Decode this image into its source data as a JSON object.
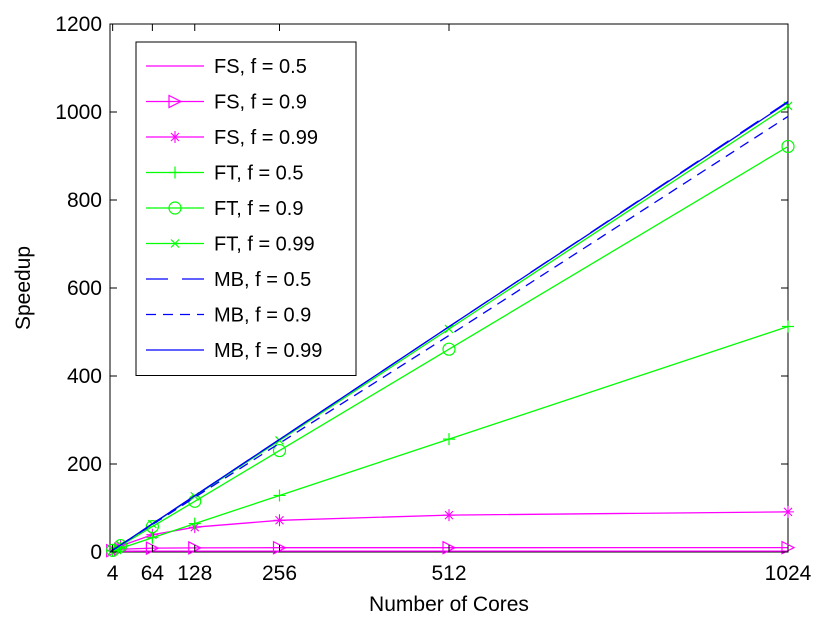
{
  "chart_data": {
    "type": "line",
    "title": "",
    "xlabel": "Number of Cores",
    "ylabel": "Speedup",
    "xlim": [
      0,
      1024
    ],
    "ylim": [
      0,
      1200
    ],
    "xticks": [
      4,
      64,
      128,
      256,
      512,
      1024
    ],
    "xtick_labels": [
      "4",
      "64",
      "128",
      "256",
      "512",
      "1024"
    ],
    "yticks": [
      0,
      200,
      400,
      600,
      800,
      1000,
      1200
    ],
    "ytick_labels": [
      "0",
      "200",
      "400",
      "600",
      "800",
      "1000",
      "1200"
    ],
    "grid": false,
    "legend_position": "top-left",
    "x": [
      1,
      4,
      16,
      64,
      128,
      256,
      512,
      1024
    ],
    "series": [
      {
        "name": "FS, f = 0.5",
        "color": "#ff00ff",
        "dash": "solid",
        "marker": "none",
        "values": [
          1,
          1.6,
          1.9,
          2.0,
          2.0,
          2.0,
          2.0,
          2.0
        ]
      },
      {
        "name": "FS, f = 0.9",
        "color": "#ff00ff",
        "dash": "solid",
        "marker": "triangle-right",
        "values": [
          1,
          3.1,
          6.4,
          8.8,
          9.3,
          9.7,
          9.8,
          9.9
        ]
      },
      {
        "name": "FS, f = 0.99",
        "color": "#ff00ff",
        "dash": "solid",
        "marker": "asterisk",
        "values": [
          1,
          3.9,
          13.9,
          39.3,
          56.4,
          72.1,
          83.8,
          91.2
        ]
      },
      {
        "name": "FT, f = 0.5",
        "color": "#00ff00",
        "dash": "solid",
        "marker": "plus",
        "values": [
          1,
          2.5,
          8.5,
          32.5,
          64.5,
          128.5,
          256.5,
          512.5
        ]
      },
      {
        "name": "FT, f = 0.9",
        "color": "#00ff00",
        "dash": "solid",
        "marker": "circle",
        "values": [
          1,
          3.7,
          14.5,
          57.7,
          115.3,
          230.5,
          460.9,
          921.7
        ]
      },
      {
        "name": "FT, f = 0.99",
        "color": "#00ff00",
        "dash": "solid",
        "marker": "x",
        "values": [
          1,
          4.0,
          15.9,
          63.4,
          126.7,
          253.5,
          506.9,
          1013.8
        ]
      },
      {
        "name": "MB, f = 0.5",
        "color": "#0000ff",
        "dash": "longdash",
        "marker": "none",
        "values": [
          1,
          4,
          16,
          64,
          128,
          256,
          512,
          1024
        ]
      },
      {
        "name": "MB, f = 0.9",
        "color": "#0000ff",
        "dash": "dashed",
        "marker": "none",
        "values": [
          1,
          3.9,
          15.7,
          62.3,
          124.0,
          247.0,
          492.0,
          990.0
        ]
      },
      {
        "name": "MB, f = 0.99",
        "color": "#0000ff",
        "dash": "solid",
        "marker": "none",
        "values": [
          1,
          4,
          16,
          64,
          128,
          256,
          512,
          1022
        ]
      }
    ],
    "marker_points": {
      "FS, f = 0.99": [
        4,
        16,
        64,
        128,
        256,
        512,
        1024
      ],
      "FS, f = 0.9": [
        4,
        16,
        64,
        128,
        256,
        512,
        1024
      ],
      "FT, f = 0.5": [
        4,
        16,
        64,
        128,
        256,
        512,
        1024
      ],
      "FT, f = 0.9": [
        4,
        16,
        64,
        128,
        256,
        512,
        1024
      ],
      "FT, f = 0.99": [
        4,
        16,
        64,
        128,
        256,
        512,
        1024
      ]
    }
  }
}
